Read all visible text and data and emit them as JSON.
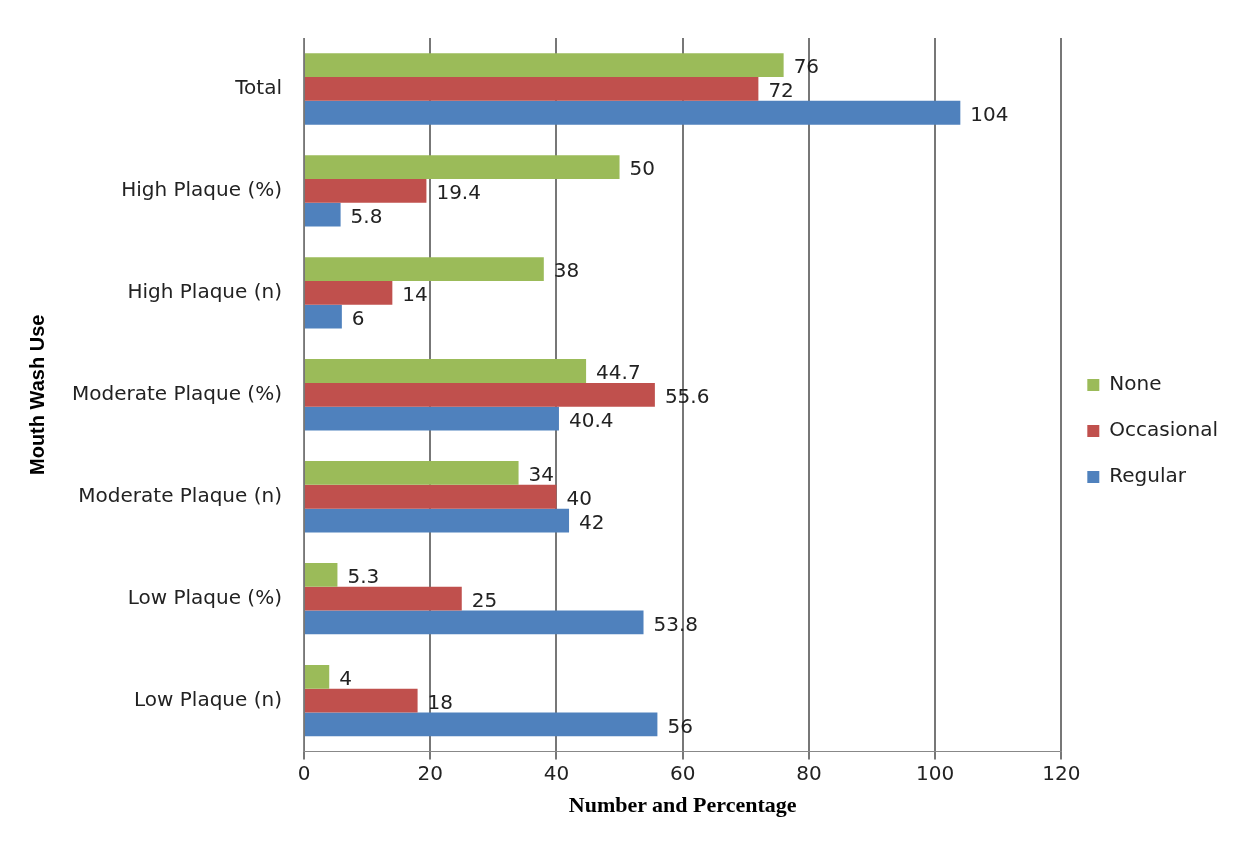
{
  "chart_data": {
    "type": "bar",
    "orientation": "horizontal",
    "xlabel": "Number and Percentage",
    "ylabel": "Mouth Wash Use",
    "categories": [
      "Total",
      "High Plaque (%)",
      "High Plaque (n)",
      "Moderate Plaque (%)",
      "Moderate Plaque (n)",
      "Low Plaque (%)",
      "Low Plaque (n)"
    ],
    "series": [
      {
        "name": "None",
        "color": "#9bbb59",
        "values": [
          76,
          50,
          38,
          44.7,
          34,
          5.3,
          4
        ]
      },
      {
        "name": "Occasional",
        "color": "#c0504d",
        "values": [
          72,
          19.4,
          14,
          55.6,
          40,
          25,
          18
        ]
      },
      {
        "name": "Regular",
        "color": "#4f81bd",
        "values": [
          104,
          5.8,
          6,
          40.4,
          42,
          53.8,
          56
        ]
      }
    ],
    "xlim": [
      0,
      120
    ],
    "xticks": [
      0,
      20,
      40,
      60,
      80,
      100,
      120
    ],
    "grid": "x",
    "legend": "right",
    "data_labels": true
  }
}
